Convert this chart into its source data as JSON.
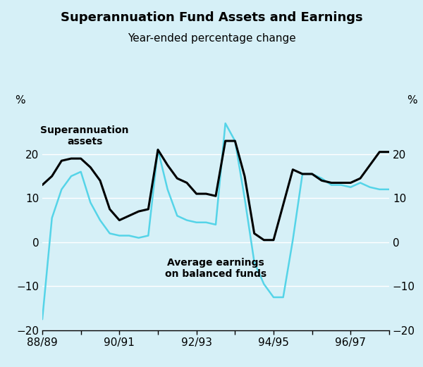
{
  "title": "Superannuation Fund Assets and Earnings",
  "subtitle": "Year-ended percentage change",
  "ylabel_left": "%",
  "ylabel_right": "%",
  "xlim": [
    0,
    9
  ],
  "ylim": [
    -20,
    30
  ],
  "yticks": [
    -20,
    -10,
    0,
    10,
    20
  ],
  "xtick_labels": [
    "88/89",
    "90/91",
    "92/93",
    "94/95",
    "96/97"
  ],
  "xtick_positions": [
    0,
    2,
    4,
    6,
    8
  ],
  "background_color": "#d6f0f7",
  "grid_color": "#ffffff",
  "super_assets_label": "Superannuation\nassets",
  "earnings_label": "Average earnings\non balanced funds",
  "super_assets_color": "#000000",
  "earnings_color": "#55d4e8",
  "super_assets_lw": 2.2,
  "earnings_lw": 1.8,
  "x_points": [
    0.0,
    0.25,
    0.5,
    0.75,
    1.0,
    1.25,
    1.5,
    1.75,
    2.0,
    2.25,
    2.5,
    2.75,
    3.0,
    3.25,
    3.5,
    3.75,
    4.0,
    4.25,
    4.5,
    4.75,
    5.0,
    5.25,
    5.5,
    5.75,
    6.0,
    6.25,
    6.5,
    6.75,
    7.0,
    7.25,
    7.5,
    7.75,
    8.0,
    8.25,
    8.5,
    8.75,
    9.0
  ],
  "super_assets": [
    13.0,
    15.0,
    18.5,
    19.0,
    19.0,
    17.0,
    14.0,
    7.5,
    5.0,
    6.0,
    7.0,
    7.5,
    21.0,
    17.5,
    14.5,
    13.5,
    11.0,
    11.0,
    10.5,
    23.0,
    23.0,
    15.0,
    2.0,
    0.5,
    0.5,
    8.5,
    16.5,
    15.5,
    15.5,
    14.0,
    13.5,
    13.5,
    13.5,
    14.5,
    17.5,
    20.5,
    20.5
  ],
  "earnings": [
    -17.5,
    5.5,
    12.0,
    15.0,
    16.0,
    9.0,
    5.0,
    2.0,
    1.5,
    1.5,
    1.0,
    1.5,
    21.0,
    12.0,
    6.0,
    5.0,
    4.5,
    4.5,
    4.0,
    27.0,
    23.0,
    10.0,
    -4.5,
    -9.5,
    -12.5,
    -12.5,
    0.5,
    15.5,
    15.5,
    14.5,
    13.0,
    13.0,
    12.5,
    13.5,
    12.5,
    12.0,
    12.0
  ]
}
